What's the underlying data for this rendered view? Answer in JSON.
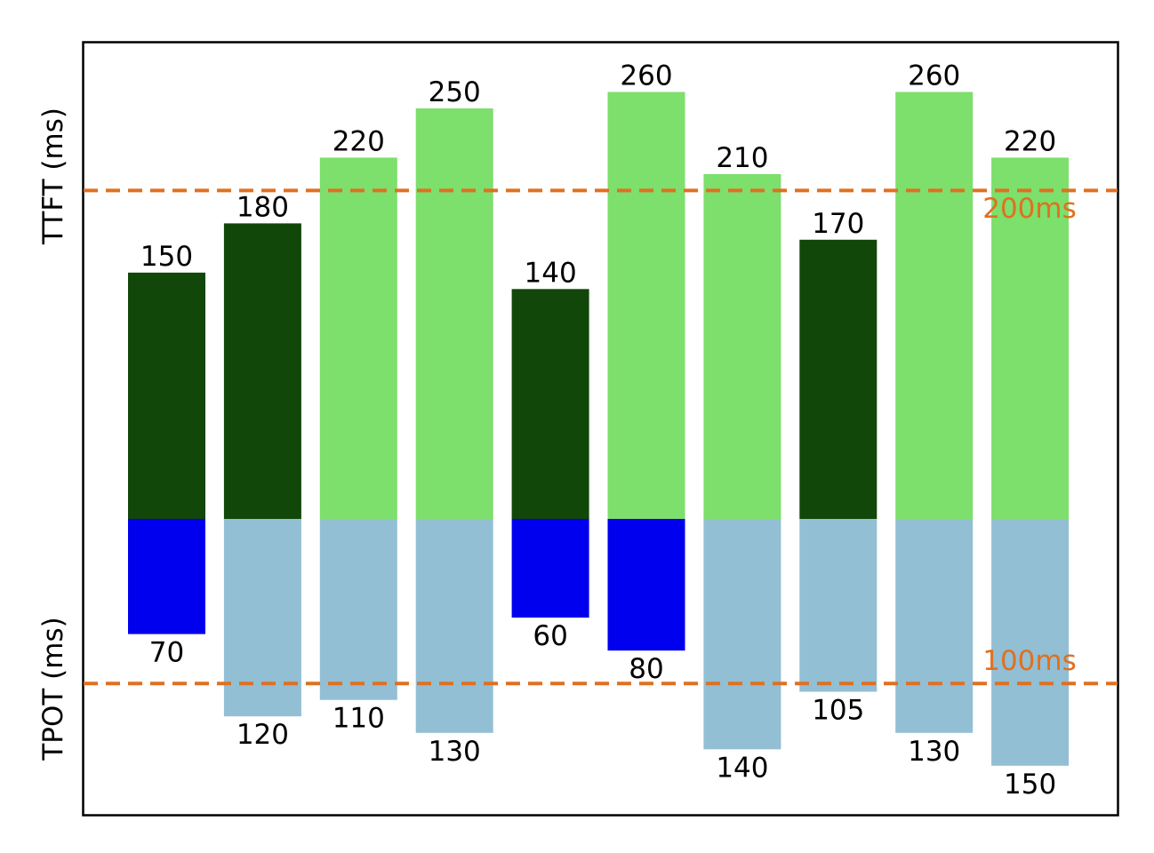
{
  "chart_data": {
    "type": "bar",
    "ttft_axis_label": "TTFT (ms)",
    "tpot_axis_label": "TPOT (ms)",
    "ttft_values": [
      150,
      180,
      220,
      250,
      140,
      260,
      210,
      170,
      260,
      220
    ],
    "tpot_values": [
      70,
      120,
      110,
      130,
      60,
      80,
      140,
      105,
      130,
      150
    ],
    "ttft_threshold": 200,
    "tpot_threshold": 100,
    "ttft_threshold_label": "200ms",
    "tpot_threshold_label": "100ms",
    "colors": {
      "ttft_within_slo": "#114709",
      "ttft_over_slo": "#7ddf6c",
      "tpot_within_slo": "#0000ee",
      "tpot_over_slo": "#92bfd4",
      "threshold_line": "#e07020"
    }
  }
}
